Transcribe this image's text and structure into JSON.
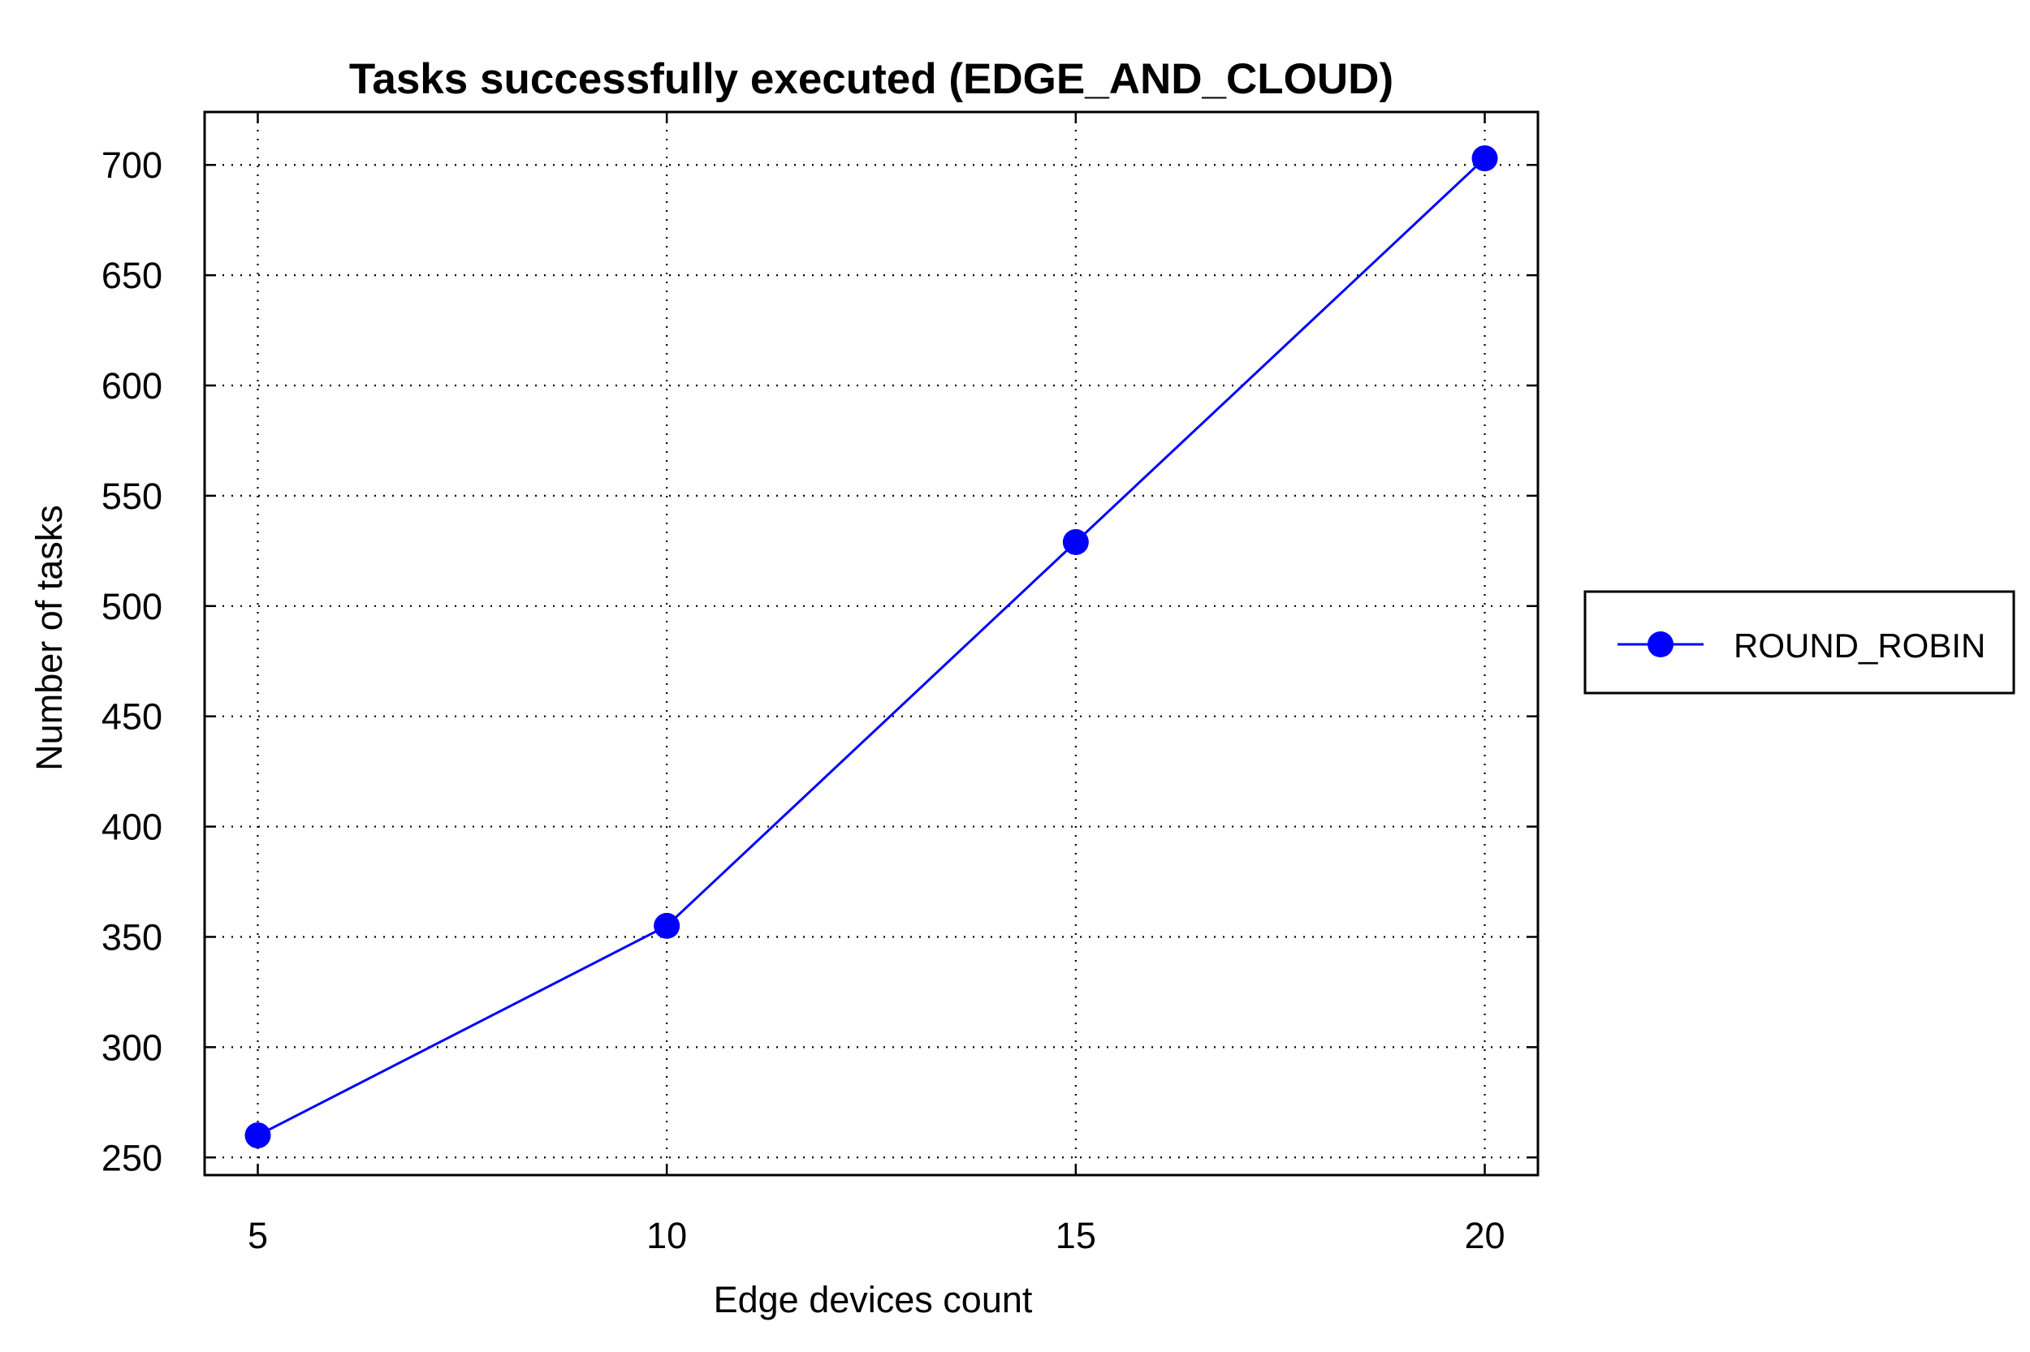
{
  "chart_data": {
    "type": "line",
    "title": "Tasks successfully executed (EDGE_AND_CLOUD)",
    "xlabel": "Edge devices count",
    "ylabel": "Number of tasks",
    "x": [
      5,
      10,
      15,
      20
    ],
    "xticks": [
      "5",
      "10",
      "15",
      "20"
    ],
    "yticks": [
      "250",
      "300",
      "350",
      "400",
      "450",
      "500",
      "550",
      "600",
      "650",
      "700"
    ],
    "xlim": [
      4.35,
      20.65
    ],
    "ylim": [
      242,
      724
    ],
    "grid": true,
    "legend_position": "outside-right",
    "series": [
      {
        "name": "ROUND_ROBIN",
        "values": [
          260,
          355,
          529,
          703
        ],
        "color": "#0000ff",
        "marker": "circle"
      }
    ]
  }
}
